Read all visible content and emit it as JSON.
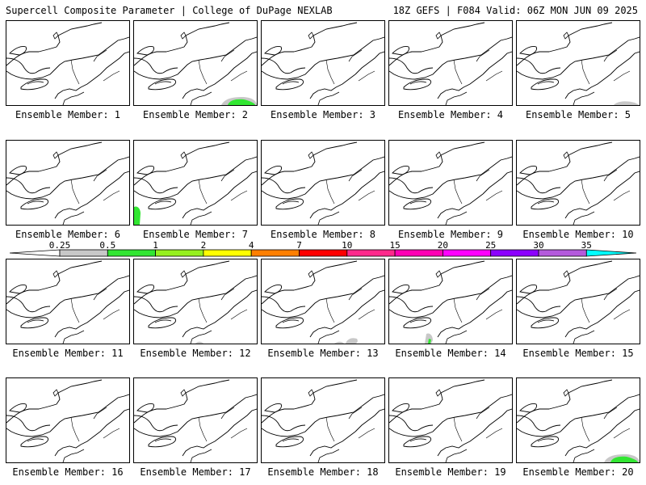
{
  "header": {
    "left": "Supercell Composite Parameter | College of DuPage NEXLAB",
    "right": "18Z GEFS | F084 Valid: 06Z MON JUN 09 2025"
  },
  "colorbar": {
    "ticks": [
      "0.25",
      "0.5",
      "1",
      "2",
      "4",
      "7",
      "10",
      "15",
      "20",
      "25",
      "30",
      "35"
    ],
    "colors": [
      "#c8c8c8",
      "#32e632",
      "#96f01e",
      "#ffff00",
      "#ff7f00",
      "#ff0000",
      "#ff2a8c",
      "#ff00b4",
      "#ff00ff",
      "#8c00ff",
      "#b45adc",
      "#00ffff"
    ]
  },
  "members": [
    {
      "label": "Ensemble Member: 1",
      "blobs": []
    },
    {
      "label": "Ensemble Member: 2",
      "blobs": [
        {
          "type": "gray-green",
          "loc": "south-right"
        }
      ]
    },
    {
      "label": "Ensemble Member: 3",
      "blobs": []
    },
    {
      "label": "Ensemble Member: 4",
      "blobs": []
    },
    {
      "label": "Ensemble Member: 5",
      "blobs": [
        {
          "type": "gray",
          "loc": "south-right-small"
        }
      ]
    },
    {
      "label": "Ensemble Member: 6",
      "blobs": []
    },
    {
      "label": "Ensemble Member: 7",
      "blobs": [
        {
          "type": "green",
          "loc": "west-edge"
        }
      ]
    },
    {
      "label": "Ensemble Member: 8",
      "blobs": []
    },
    {
      "label": "Ensemble Member: 9",
      "blobs": []
    },
    {
      "label": "Ensemble Member: 10",
      "blobs": []
    },
    {
      "label": "Ensemble Member: 11",
      "blobs": []
    },
    {
      "label": "Ensemble Member: 12",
      "blobs": [
        {
          "type": "gray",
          "loc": "south-center-tiny"
        }
      ]
    },
    {
      "label": "Ensemble Member: 13",
      "blobs": [
        {
          "type": "gray",
          "loc": "south-center"
        }
      ]
    },
    {
      "label": "Ensemble Member: 14",
      "blobs": [
        {
          "type": "gray-green",
          "loc": "south-center-left"
        }
      ]
    },
    {
      "label": "Ensemble Member: 15",
      "blobs": []
    },
    {
      "label": "Ensemble Member: 16",
      "blobs": []
    },
    {
      "label": "Ensemble Member: 17",
      "blobs": []
    },
    {
      "label": "Ensemble Member: 18",
      "blobs": []
    },
    {
      "label": "Ensemble Member: 19",
      "blobs": []
    },
    {
      "label": "Ensemble Member: 20",
      "blobs": [
        {
          "type": "gray-green",
          "loc": "south-right"
        }
      ]
    }
  ]
}
